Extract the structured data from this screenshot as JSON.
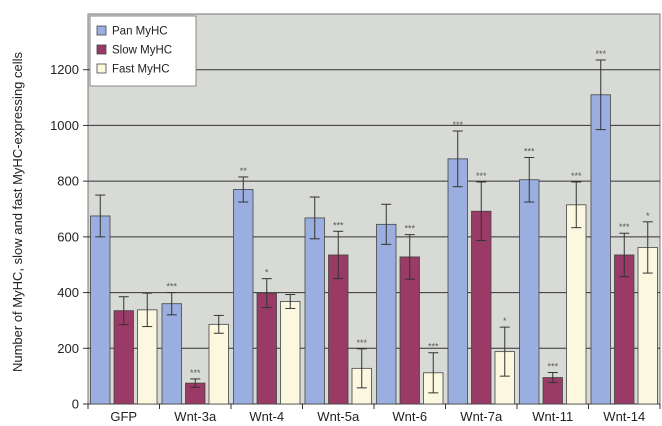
{
  "chart_data": {
    "type": "bar",
    "title": "",
    "xlabel": "",
    "ylabel": "Number of MyHC, slow and fast MyHC-expressing cells",
    "ylim": [
      0,
      1400
    ],
    "yticks": [
      0,
      200,
      400,
      600,
      800,
      1000,
      1200
    ],
    "grid": true,
    "legend_position": "top-left",
    "categories": [
      "GFP",
      "Wnt-3a",
      "Wnt-4",
      "Wnt-5a",
      "Wnt-6",
      "Wnt-7a",
      "Wnt-11",
      "Wnt-14"
    ],
    "series": [
      {
        "name": "Pan MyHC",
        "color": "#9aaee0",
        "values": [
          675,
          360,
          770,
          668,
          645,
          880,
          805,
          1110
        ],
        "errors": [
          75,
          40,
          45,
          75,
          72,
          100,
          80,
          125
        ],
        "significance": [
          "",
          "***",
          "**",
          "",
          "",
          "***",
          "***",
          "***"
        ]
      },
      {
        "name": "Slow MyHC",
        "color": "#9a3a66",
        "values": [
          335,
          75,
          398,
          535,
          528,
          692,
          95,
          535
        ],
        "errors": [
          50,
          15,
          52,
          85,
          80,
          105,
          18,
          78
        ],
        "significance": [
          "",
          "***",
          "*",
          "***",
          "***",
          "***",
          "***",
          "***"
        ]
      },
      {
        "name": "Fast MyHC",
        "color": "#fbf8df",
        "values": [
          338,
          286,
          368,
          128,
          112,
          188,
          715,
          562
        ],
        "errors": [
          60,
          32,
          25,
          70,
          72,
          88,
          82,
          92
        ],
        "significance": [
          "",
          "",
          "",
          "***",
          "***",
          "*",
          "***",
          "*"
        ]
      }
    ]
  },
  "colors": {
    "plot_background": "#d8dad6",
    "gridline": "#333333",
    "bar_outline": "#444444"
  }
}
